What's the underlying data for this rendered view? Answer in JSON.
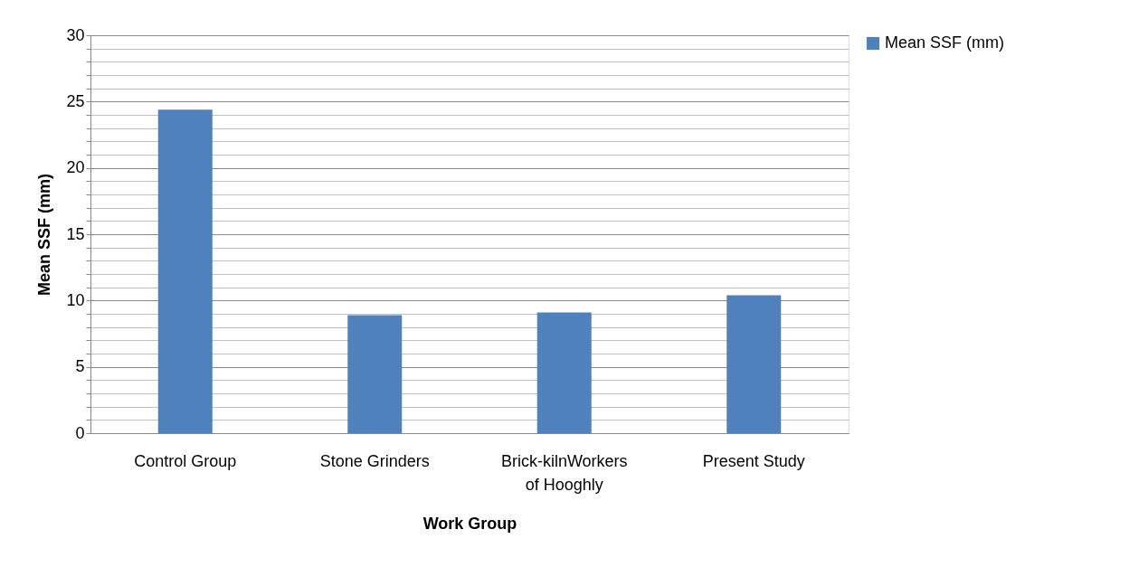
{
  "chart_data": {
    "type": "bar",
    "xlabel": "Work Group",
    "ylabel": "Mean SSF (mm)",
    "categories": [
      "Control Group",
      "Stone Grinders",
      "Brick-kilnWorkers of Hooghly",
      "Present Study"
    ],
    "series": [
      {
        "name": "Mean SSF (mm)",
        "color": "#4f81bd",
        "values": [
          24.4,
          8.9,
          9.1,
          10.4
        ]
      }
    ],
    "ylim": [
      0,
      30
    ],
    "yticks": [
      0,
      {
        "value": 1,
        "label": null
      },
      {
        "value": 2,
        "label": null
      },
      {
        "value": 3,
        "label": null
      },
      {
        "value": 4,
        "label": null
      },
      5,
      {
        "value": 6,
        "label": null
      },
      {
        "value": 7,
        "label": null
      },
      {
        "value": 8,
        "label": null
      },
      {
        "value": 9,
        "label": null
      },
      10,
      {
        "value": 11,
        "label": null
      },
      {
        "value": 12,
        "label": null
      },
      {
        "value": 13,
        "label": null
      },
      {
        "value": 14,
        "label": null
      },
      15,
      {
        "value": 16,
        "label": null
      },
      {
        "value": 17,
        "label": null
      },
      {
        "value": 18,
        "label": null
      },
      {
        "value": 19,
        "label": null
      },
      20,
      {
        "value": 21,
        "label": null
      },
      {
        "value": 22,
        "label": null
      },
      {
        "value": 23,
        "label": null
      },
      {
        "value": 24,
        "label": null
      },
      25,
      {
        "value": 26,
        "label": null
      },
      {
        "value": 27,
        "label": null
      },
      {
        "value": 28,
        "label": null
      },
      {
        "value": 29,
        "label": null
      },
      30
    ],
    "grid": "y",
    "legend": "right"
  }
}
